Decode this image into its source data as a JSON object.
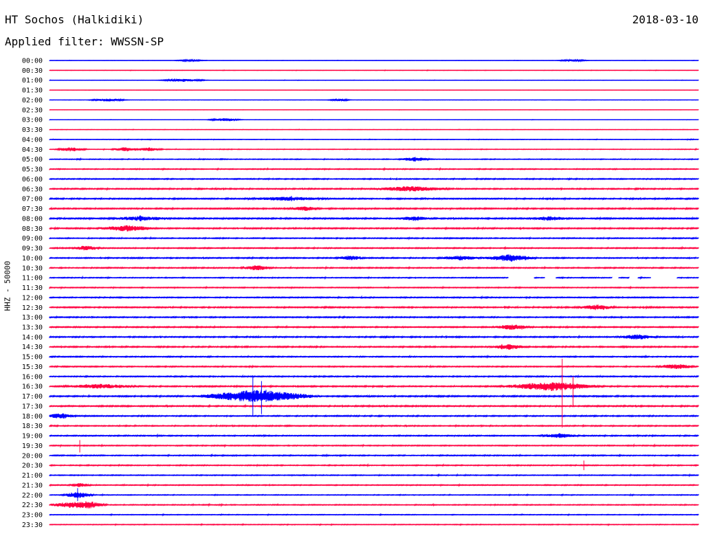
{
  "header": {
    "station": "HT Sochos (Halkidiki)",
    "date": "2018-03-10",
    "filter": "Applied filter: WWSSN-SP"
  },
  "y_axis_label": "HHZ - 50000",
  "colors": {
    "blue": "#0000ff",
    "red": "#ff0040"
  },
  "chart_data": {
    "type": "line",
    "title": "HT Sochos (Halkidiki)",
    "date": "2018-03-10",
    "channel": "HHZ",
    "scale": "50000",
    "filter": "WWSSN-SP",
    "row_labels": [
      "00:00",
      "00:30",
      "01:00",
      "01:30",
      "02:00",
      "02:30",
      "03:00",
      "03:30",
      "04:00",
      "04:30",
      "05:00",
      "05:30",
      "06:00",
      "06:30",
      "07:00",
      "07:30",
      "08:00",
      "08:30",
      "09:00",
      "09:30",
      "10:00",
      "10:30",
      "11:00",
      "11:30",
      "12:00",
      "12:30",
      "13:00",
      "13:30",
      "14:00",
      "14:30",
      "15:00",
      "15:30",
      "16:00",
      "16:30",
      "17:00",
      "17:30",
      "18:00",
      "18:30",
      "19:00",
      "19:30",
      "20:00",
      "20:30",
      "21:00",
      "21:30",
      "22:00",
      "22:30",
      "23:00",
      "23:30"
    ],
    "row_colors": [
      "blue",
      "red"
    ],
    "trace_minutes": 30,
    "noise_level": [
      0.15,
      0.2,
      0.2,
      0.12,
      0.12,
      0.12,
      0.15,
      0.2,
      0.3,
      0.35,
      0.45,
      0.5,
      0.6,
      0.65,
      0.7,
      0.7,
      0.75,
      0.7,
      0.6,
      0.6,
      0.65,
      0.6,
      0.5,
      0.5,
      0.6,
      0.7,
      0.65,
      0.65,
      0.7,
      0.7,
      0.6,
      0.6,
      0.65,
      0.7,
      0.75,
      0.7,
      0.65,
      0.6,
      0.6,
      0.55,
      0.6,
      0.55,
      0.5,
      0.5,
      0.45,
      0.5,
      0.4,
      0.4
    ],
    "events": [
      {
        "row": 0,
        "minute": 6.5,
        "amp": 1.2,
        "dur": 0.8
      },
      {
        "row": 0,
        "minute": 24.2,
        "amp": 1.5,
        "dur": 0.8
      },
      {
        "row": 2,
        "minute": 6.2,
        "amp": 2.0,
        "dur": 1.2
      },
      {
        "row": 4,
        "minute": 2.7,
        "amp": 2.2,
        "dur": 1.0
      },
      {
        "row": 4,
        "minute": 13.4,
        "amp": 1.8,
        "dur": 0.6
      },
      {
        "row": 6,
        "minute": 8.1,
        "amp": 2.2,
        "dur": 0.9
      },
      {
        "row": 9,
        "minute": 1.0,
        "amp": 3.0,
        "dur": 0.8
      },
      {
        "row": 9,
        "minute": 3.5,
        "amp": 3.0,
        "dur": 0.7
      },
      {
        "row": 9,
        "minute": 4.6,
        "amp": 2.5,
        "dur": 0.7
      },
      {
        "row": 10,
        "minute": 16.9,
        "amp": 3.0,
        "dur": 0.8
      },
      {
        "row": 13,
        "minute": 16.7,
        "amp": 3.5,
        "dur": 2.0
      },
      {
        "row": 14,
        "minute": 11.0,
        "amp": 2.5,
        "dur": 2.0
      },
      {
        "row": 15,
        "minute": 11.8,
        "amp": 3.0,
        "dur": 0.8
      },
      {
        "row": 16,
        "minute": 4.2,
        "amp": 3.0,
        "dur": 1.5
      },
      {
        "row": 16,
        "minute": 16.9,
        "amp": 3.0,
        "dur": 0.9
      },
      {
        "row": 16,
        "minute": 23.1,
        "amp": 2.8,
        "dur": 1.0
      },
      {
        "row": 17,
        "minute": 3.6,
        "amp": 4.0,
        "dur": 1.5
      },
      {
        "row": 19,
        "minute": 1.7,
        "amp": 3.0,
        "dur": 0.8
      },
      {
        "row": 20,
        "minute": 13.9,
        "amp": 3.0,
        "dur": 0.8
      },
      {
        "row": 20,
        "minute": 19.0,
        "amp": 3.0,
        "dur": 1.2
      },
      {
        "row": 20,
        "minute": 21.3,
        "amp": 5.0,
        "dur": 1.3
      },
      {
        "row": 21,
        "minute": 9.6,
        "amp": 3.5,
        "dur": 0.8
      },
      {
        "row": 25,
        "minute": 25.3,
        "amp": 3.5,
        "dur": 1.0
      },
      {
        "row": 27,
        "minute": 21.4,
        "amp": 3.5,
        "dur": 1.0
      },
      {
        "row": 28,
        "minute": 27.2,
        "amp": 3.5,
        "dur": 1.0
      },
      {
        "row": 29,
        "minute": 21.2,
        "amp": 3.5,
        "dur": 1.0
      },
      {
        "row": 31,
        "minute": 29.0,
        "amp": 3.5,
        "dur": 1.0
      },
      {
        "row": 33,
        "minute": 2.3,
        "amp": 3.0,
        "dur": 2.0
      },
      {
        "row": 33,
        "minute": 23.2,
        "amp": 6.0,
        "dur": 2.5
      },
      {
        "row": 34,
        "minute": 9.6,
        "amp": 9.0,
        "dur": 3.0
      },
      {
        "row": 36,
        "minute": 0.5,
        "amp": 4.0,
        "dur": 0.8
      },
      {
        "row": 38,
        "minute": 23.6,
        "amp": 3.0,
        "dur": 1.0
      },
      {
        "row": 43,
        "minute": 1.4,
        "amp": 3.0,
        "dur": 0.6
      },
      {
        "row": 44,
        "minute": 1.3,
        "amp": 4.5,
        "dur": 0.8
      },
      {
        "row": 45,
        "minute": 1.0,
        "amp": 4.0,
        "dur": 1.2
      },
      {
        "row": 45,
        "minute": 1.9,
        "amp": 4.0,
        "dur": 0.8
      }
    ],
    "spikes": [
      {
        "row": 33,
        "minute": 23.7,
        "up": 40,
        "down": 60
      },
      {
        "row": 33,
        "minute": 24.2,
        "up": 14,
        "down": 30
      },
      {
        "row": 34,
        "minute": 9.4,
        "up": 30,
        "down": 30
      },
      {
        "row": 34,
        "minute": 9.8,
        "up": 22,
        "down": 26
      },
      {
        "row": 39,
        "minute": 1.4,
        "up": 8,
        "down": 10
      },
      {
        "row": 41,
        "minute": 24.7,
        "up": 7,
        "down": 7
      },
      {
        "row": 44,
        "minute": 1.3,
        "up": 10,
        "down": 9
      }
    ],
    "data_gaps": [
      {
        "row": 22,
        "from_minute": 21.2,
        "to_minute": 22.4
      },
      {
        "row": 22,
        "from_minute": 22.9,
        "to_minute": 23.4
      },
      {
        "row": 22,
        "from_minute": 26.0,
        "to_minute": 26.3
      },
      {
        "row": 22,
        "from_minute": 26.8,
        "to_minute": 27.2
      },
      {
        "row": 22,
        "from_minute": 27.8,
        "to_minute": 29.0
      }
    ]
  }
}
